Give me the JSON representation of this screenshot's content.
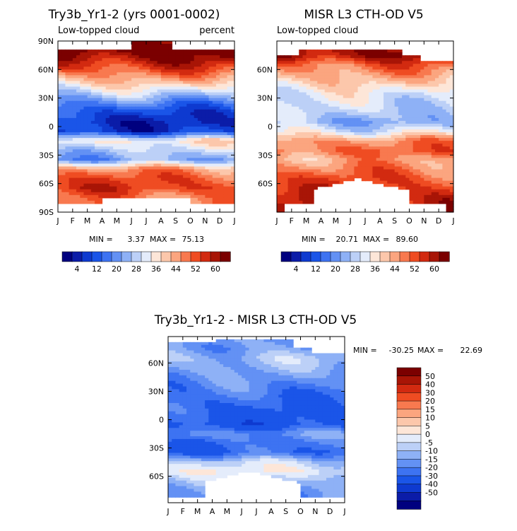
{
  "chart_data": [
    {
      "type": "heatmap",
      "id": "model",
      "title": "Try3b_Yr1-2 (yrs 0001-0002)",
      "subtitle_left": "Low-topped cloud",
      "subtitle_right": "percent",
      "stats": {
        "min_label": "MIN =",
        "min": "3.37",
        "max_label": "MAX =",
        "max": "75.13"
      },
      "x_ticks": [
        "J",
        "F",
        "M",
        "A",
        "M",
        "J",
        "J",
        "A",
        "S",
        "O",
        "N",
        "D",
        "J"
      ],
      "y_ticks": [
        "90N",
        "60N",
        "30N",
        "0",
        "30S",
        "60S",
        "90S"
      ],
      "colorbar_labels": [
        "4",
        "12",
        "20",
        "28",
        "36",
        "44",
        "52",
        "60"
      ],
      "latitude_profile": [
        [
          80,
          68
        ],
        [
          70,
          62
        ],
        [
          60,
          54
        ],
        [
          45,
          40
        ],
        [
          35,
          30
        ],
        [
          25,
          20
        ],
        [
          15,
          12
        ],
        [
          5,
          8
        ],
        [
          -5,
          10
        ],
        [
          -15,
          38
        ],
        [
          -25,
          30
        ],
        [
          -35,
          24
        ],
        [
          -45,
          48
        ],
        [
          -55,
          54
        ],
        [
          -65,
          56
        ],
        [
          -75,
          50
        ]
      ]
    },
    {
      "type": "heatmap",
      "id": "obs",
      "title": "MISR L3 CTH-OD V5",
      "subtitle_left": "Low-topped cloud",
      "stats": {
        "min_label": "MIN =",
        "min": "20.71",
        "max_label": "MAX =",
        "max": "89.60"
      },
      "x_ticks": [
        "J",
        "F",
        "M",
        "A",
        "M",
        "J",
        "J",
        "A",
        "S",
        "O",
        "N",
        "D",
        "J"
      ],
      "y_ticks": [
        "60N",
        "30N",
        "0",
        "30S",
        "60S"
      ],
      "colorbar_labels": [
        "4",
        "12",
        "20",
        "28",
        "36",
        "44",
        "52",
        "60"
      ],
      "latitude_profile": [
        [
          75,
          64
        ],
        [
          65,
          52
        ],
        [
          55,
          46
        ],
        [
          45,
          40
        ],
        [
          35,
          34
        ],
        [
          25,
          32
        ],
        [
          15,
          30
        ],
        [
          5,
          26
        ],
        [
          -5,
          34
        ],
        [
          -15,
          48
        ],
        [
          -25,
          52
        ],
        [
          -35,
          46
        ],
        [
          -45,
          50
        ],
        [
          -55,
          54
        ],
        [
          -65,
          56
        ],
        [
          -75,
          60
        ]
      ]
    },
    {
      "type": "heatmap",
      "id": "diff",
      "title": "Try3b_Yr1-2 - MISR L3 CTH-OD V5",
      "stats": {
        "min_label": "MIN =",
        "min": "-30.25",
        "max_label": "MAX =",
        "max": "22.69"
      },
      "x_ticks": [
        "J",
        "F",
        "M",
        "A",
        "M",
        "J",
        "J",
        "A",
        "S",
        "O",
        "N",
        "D",
        "J"
      ],
      "y_ticks": [
        "60N",
        "30N",
        "0",
        "30S",
        "60S"
      ],
      "colorbar_labels": [
        "50",
        "40",
        "30",
        "20",
        "15",
        "10",
        "5",
        "0",
        "-5",
        "-10",
        "-15",
        "-20",
        "-30",
        "-40",
        "-50"
      ],
      "latitude_profile": [
        [
          75,
          -10
        ],
        [
          65,
          -5
        ],
        [
          55,
          -8
        ],
        [
          45,
          -12
        ],
        [
          35,
          -15
        ],
        [
          25,
          -18
        ],
        [
          15,
          -20
        ],
        [
          5,
          -22
        ],
        [
          -5,
          -24
        ],
        [
          -15,
          -12
        ],
        [
          -25,
          -18
        ],
        [
          -35,
          -20
        ],
        [
          -45,
          -2
        ],
        [
          -55,
          4
        ],
        [
          -65,
          -6
        ],
        [
          -75,
          -12
        ]
      ]
    }
  ],
  "colors": {
    "seq_scale": [
      "#00007f",
      "#0b1ca8",
      "#0e3ad0",
      "#1a55e8",
      "#3d73f2",
      "#6391f4",
      "#8eb1f6",
      "#bcd0f7",
      "#e4ecfb",
      "#fde6d8",
      "#fcc7ab",
      "#fba57f",
      "#f8794f",
      "#ef4c22",
      "#d22a10",
      "#a81506",
      "#7b0000"
    ],
    "diff_scale": [
      "#7b0000",
      "#a81506",
      "#d22a10",
      "#ef4c22",
      "#f8794f",
      "#fba57f",
      "#fcc7ab",
      "#fde6d8",
      "#e4ecfb",
      "#bcd0f7",
      "#8eb1f6",
      "#6391f4",
      "#3d73f2",
      "#1a55e8",
      "#0e3ad0",
      "#0b1ca8",
      "#00007f"
    ]
  }
}
